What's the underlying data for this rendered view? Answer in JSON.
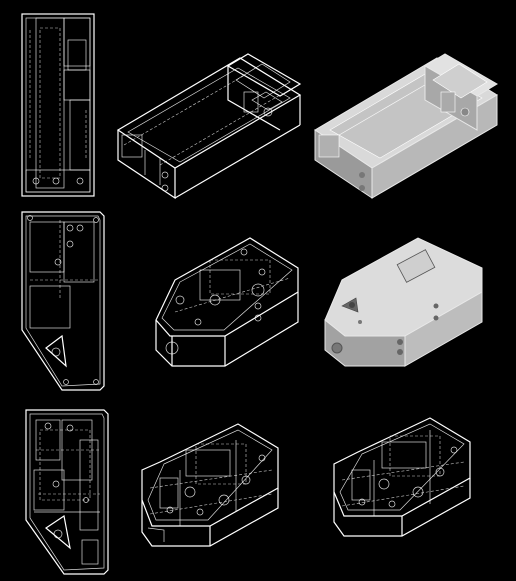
{
  "title": "",
  "views": {
    "rows": 3,
    "columns": 3
  },
  "colors": {
    "background": "#000000",
    "line": "#ffffff",
    "shaded_light": "#d9d9d9",
    "shaded_mid": "#b8b8b8",
    "shaded_dark": "#9a9a9a"
  }
}
